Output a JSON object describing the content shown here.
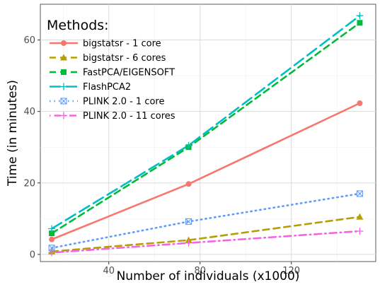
{
  "chart_data": {
    "type": "line",
    "xlabel": "Number of individuals (x1000)",
    "ylabel": "Time (in minutes)",
    "xlim": [
      10,
      157
    ],
    "ylim": [
      -2,
      70
    ],
    "xticks": [
      40,
      80,
      120
    ],
    "yticks": [
      0,
      20,
      40,
      60
    ],
    "grid": true,
    "legend": {
      "title": "Methods:",
      "position": "top-left"
    },
    "x": [
      15,
      75,
      150
    ],
    "series": [
      {
        "name": "bigstatsr - 1 core",
        "values": [
          4.2,
          19.7,
          42.3
        ],
        "color": "#f8766d",
        "dash": "solid",
        "marker": "circle"
      },
      {
        "name": "bigstatsr - 6 cores",
        "values": [
          0.8,
          4.0,
          10.5
        ],
        "color": "#b79f00",
        "dash": "dashed",
        "marker": "triangle"
      },
      {
        "name": "FastPCA/EIGENSOFT",
        "values": [
          5.9,
          30.0,
          64.8
        ],
        "color": "#00ba38",
        "dash": "dashed",
        "marker": "square"
      },
      {
        "name": "FlashPCA2",
        "values": [
          7.2,
          30.5,
          66.8
        ],
        "color": "#00bfc4",
        "dash": "longdash",
        "marker": "plus"
      },
      {
        "name": "PLINK 2.0 - 1 core",
        "values": [
          1.8,
          9.2,
          17.0
        ],
        "color": "#619cff",
        "dash": "dotted",
        "marker": "square-x"
      },
      {
        "name": "PLINK 2.0 - 11 cores",
        "values": [
          0.5,
          3.2,
          6.5
        ],
        "color": "#f564e3",
        "dash": "dotdash",
        "marker": "plus"
      }
    ]
  }
}
